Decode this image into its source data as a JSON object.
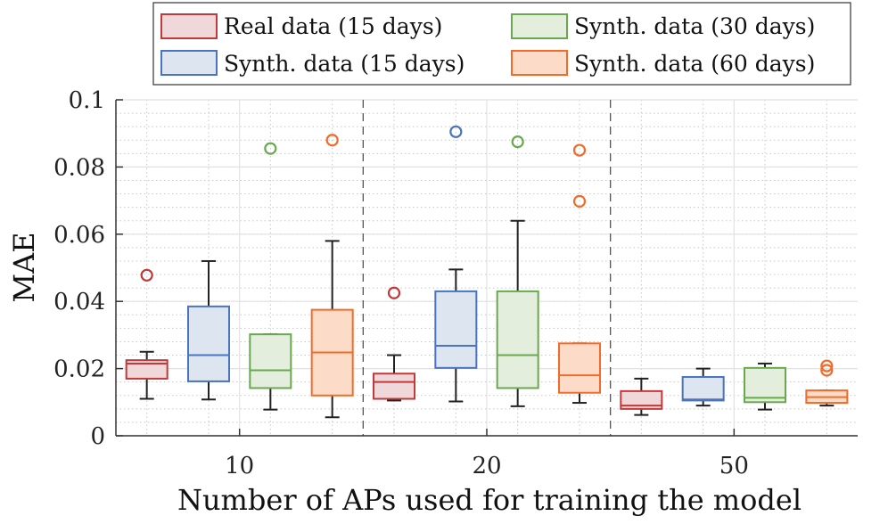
{
  "chart_data": {
    "type": "boxplot",
    "title": "",
    "xlabel": "Number of APs used for training the model",
    "ylabel": "MAE",
    "ylim": [
      0,
      0.1
    ],
    "yticks": [
      0,
      0.02,
      0.04,
      0.06,
      0.08,
      0.1
    ],
    "ytick_labels": [
      "0",
      "0.02",
      "0.04",
      "0.06",
      "0.08",
      "0.1"
    ],
    "categories": [
      "10",
      "20",
      "50"
    ],
    "grid": "on (major and minor, dotted minor)",
    "legend_position": "top, outside",
    "series": [
      {
        "name": "Real data (15 days)",
        "color": "#c0393b",
        "fill": "#f0d8da",
        "boxes": [
          {
            "category": "10",
            "min": 0.011,
            "q1": 0.017,
            "median": 0.0215,
            "q3": 0.0225,
            "max": 0.025,
            "outliers": [
              0.0478
            ]
          },
          {
            "category": "20",
            "min": 0.0105,
            "q1": 0.011,
            "median": 0.016,
            "q3": 0.0185,
            "max": 0.024,
            "outliers": [
              0.0425
            ]
          },
          {
            "category": "50",
            "min": 0.0062,
            "q1": 0.008,
            "median": 0.009,
            "q3": 0.0133,
            "max": 0.017,
            "outliers": []
          }
        ]
      },
      {
        "name": "Synth. data (15 days)",
        "color": "#4a74c0",
        "fill": "#dde5f1",
        "boxes": [
          {
            "category": "10",
            "min": 0.0108,
            "q1": 0.0162,
            "median": 0.024,
            "q3": 0.0385,
            "max": 0.052,
            "outliers": []
          },
          {
            "category": "20",
            "min": 0.0102,
            "q1": 0.0202,
            "median": 0.0268,
            "q3": 0.043,
            "max": 0.0495,
            "outliers": [
              0.0905
            ]
          },
          {
            "category": "50",
            "min": 0.009,
            "q1": 0.0105,
            "median": 0.0108,
            "q3": 0.0175,
            "max": 0.02,
            "outliers": []
          }
        ]
      },
      {
        "name": "Synth. data (30 days)",
        "color": "#6aa84f",
        "fill": "#e3eedc",
        "boxes": [
          {
            "category": "10",
            "min": 0.0078,
            "q1": 0.0142,
            "median": 0.0195,
            "q3": 0.0302,
            "max": 0.0302,
            "outliers": [
              0.0855
            ]
          },
          {
            "category": "20",
            "min": 0.0088,
            "q1": 0.0142,
            "median": 0.024,
            "q3": 0.043,
            "max": 0.064,
            "outliers": [
              0.0875
            ]
          },
          {
            "category": "50",
            "min": 0.0078,
            "q1": 0.01,
            "median": 0.0113,
            "q3": 0.0202,
            "max": 0.0215,
            "outliers": []
          }
        ]
      },
      {
        "name": "Synth. data (60 days)",
        "color": "#f26b2a",
        "fill": "#fcdcc8",
        "boxes": [
          {
            "category": "10",
            "min": 0.0055,
            "q1": 0.012,
            "median": 0.0248,
            "q3": 0.0375,
            "max": 0.058,
            "outliers": [
              0.088
            ]
          },
          {
            "category": "20",
            "min": 0.0098,
            "q1": 0.0128,
            "median": 0.018,
            "q3": 0.0275,
            "max": 0.0275,
            "outliers": [
              0.0698,
              0.085
            ]
          },
          {
            "category": "50",
            "min": 0.009,
            "q1": 0.0098,
            "median": 0.0115,
            "q3": 0.0135,
            "max": 0.0135,
            "outliers": [
              0.0195,
              0.0208
            ]
          }
        ]
      }
    ]
  }
}
